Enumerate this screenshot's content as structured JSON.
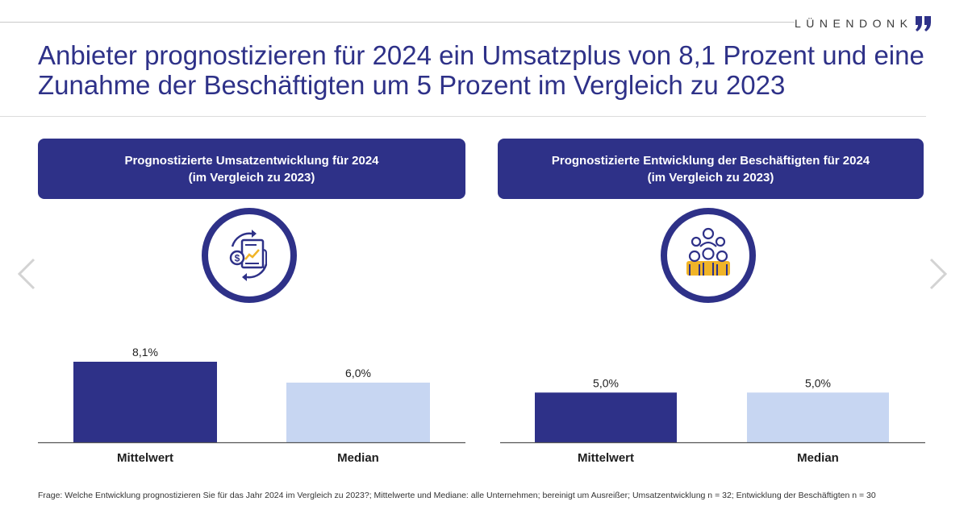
{
  "brand": {
    "name": "LÜNENDONK"
  },
  "title": "Anbieter prognostizieren für 2024 ein Umsatzplus von 8,1 Prozent und eine Zunahme der Beschäftigten um 5 Prozent im Vergleich zu 2023",
  "colors": {
    "primary": "#2e3188",
    "secondary": "#c7d6f2",
    "accent": "#f0b428"
  },
  "panels": [
    {
      "heading_line1": "Prognostizierte Umsatzentwicklung für 2024",
      "heading_line2": "(im Vergleich zu 2023)",
      "icon": "revenue-document-icon"
    },
    {
      "heading_line1": "Prognostizierte Entwicklung der Beschäftigten für 2024",
      "heading_line2": "(im Vergleich zu 2023)",
      "icon": "employees-group-icon"
    }
  ],
  "nav": {
    "prev_icon": "chevron-left-icon",
    "next_icon": "chevron-right-icon"
  },
  "chart_data": [
    {
      "type": "bar",
      "title": "Prognostizierte Umsatzentwicklung für 2024 (im Vergleich zu 2023)",
      "categories": [
        "Mittelwert",
        "Median"
      ],
      "values": [
        8.1,
        6.0
      ],
      "value_labels": [
        "8,1%",
        "6,0%"
      ],
      "bar_colors": [
        "#2e3188",
        "#c7d6f2"
      ],
      "ylim": [
        0,
        8.1
      ],
      "grid": false
    },
    {
      "type": "bar",
      "title": "Prognostizierte Entwicklung der Beschäftigten für 2024 (im Vergleich zu 2023)",
      "categories": [
        "Mittelwert",
        "Median"
      ],
      "values": [
        5.0,
        5.0
      ],
      "value_labels": [
        "5,0%",
        "5,0%"
      ],
      "bar_colors": [
        "#2e3188",
        "#c7d6f2"
      ],
      "ylim": [
        0,
        8.1
      ],
      "grid": false
    }
  ],
  "footnote": "Frage: Welche Entwicklung prognostizieren Sie für das Jahr 2024 im Vergleich zu 2023?; Mittelwerte und Mediane: alle Unternehmen; bereinigt um Ausreißer; Umsatzentwicklung n = 32; Entwicklung der Beschäftigten n = 30"
}
